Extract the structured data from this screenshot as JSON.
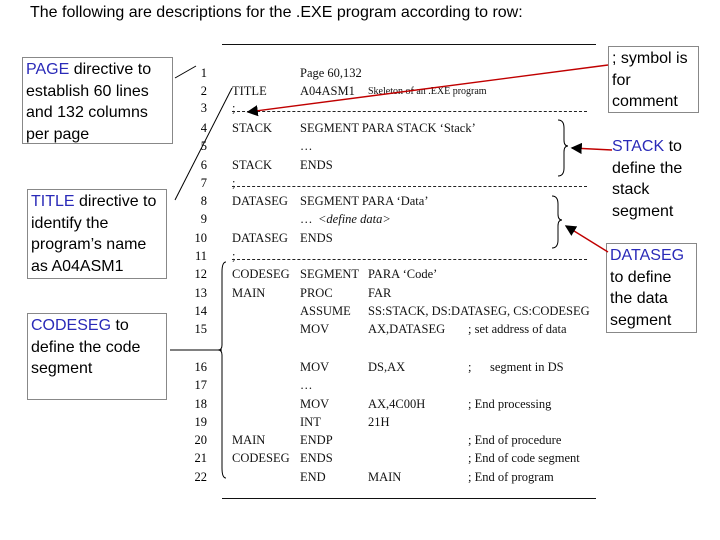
{
  "heading": "The following are descriptions for the .EXE program according to row:",
  "callouts": {
    "page": {
      "keyword": "PAGE",
      "rest": " directive to establish 60 lines and 132 columns per page"
    },
    "title": {
      "keyword": "TITLE",
      "rest": " directive to identify the program’s name as A04ASM1"
    },
    "codeseg": {
      "keyword": "CODESEG",
      "rest": " to define the code segment"
    },
    "comment": {
      "text": "; symbol is for comment"
    },
    "stack": {
      "keyword": "STACK",
      "rest": " to define the stack segment"
    },
    "dataseg": {
      "keyword": "DATASEG",
      "rest": " to define the data segment"
    }
  },
  "listing": {
    "line_numbers": [
      "1",
      "2",
      "3",
      "4",
      "5",
      "6",
      "7",
      "8",
      "9",
      "10",
      "11",
      "12",
      "13",
      "14",
      "15",
      "16",
      "17",
      "18",
      "19",
      "20",
      "21",
      "22"
    ],
    "row1": {
      "page": "Page 60,132"
    },
    "row2": {
      "label": "TITLE",
      "op": "A04ASM1",
      "arg": "Skeleton of an .EXE program"
    },
    "row3": {
      "label": ";"
    },
    "row4": {
      "label": "STACK",
      "op": "SEGMENT PARA STACK ‘Stack’"
    },
    "row5": {
      "op": "…"
    },
    "row6": {
      "label": "STACK",
      "op": "ENDS"
    },
    "row7": {
      "label": ";"
    },
    "row8": {
      "label": "DATASEG",
      "op": "SEGMENT PARA ‘Data’"
    },
    "row9": {
      "op": "…",
      "arg": "<define data>"
    },
    "row10": {
      "label": "DATASEG",
      "op": "ENDS"
    },
    "row11": {
      "label": ";"
    },
    "row12": {
      "label": "CODESEG",
      "op": "SEGMENT",
      "arg": "PARA ‘Code’"
    },
    "row13": {
      "label": "MAIN",
      "op": "PROC",
      "arg": "FAR"
    },
    "row14": {
      "op": "ASSUME",
      "arg": "SS:STACK, DS:DATASEG, CS:CODESEG"
    },
    "row15": {
      "op": "MOV",
      "arg": "AX,DATASEG",
      "comment": "; set address of data"
    },
    "row16": {
      "op": "MOV",
      "arg": "DS,AX",
      "comment": ";",
      "comment2": "segment in DS"
    },
    "row17": {
      "op": "…"
    },
    "row18": {
      "op": "MOV",
      "arg": "AX,4C00H",
      "comment": "; End processing"
    },
    "row19": {
      "op": "INT",
      "arg": "21H"
    },
    "row20": {
      "label": "MAIN",
      "op": "ENDP",
      "comment": "; End of procedure"
    },
    "row21": {
      "label": "CODESEG",
      "op": "ENDS",
      "comment": "; End of code segment"
    },
    "row22": {
      "op": "END",
      "arg": "MAIN",
      "comment": "; End of program"
    }
  }
}
